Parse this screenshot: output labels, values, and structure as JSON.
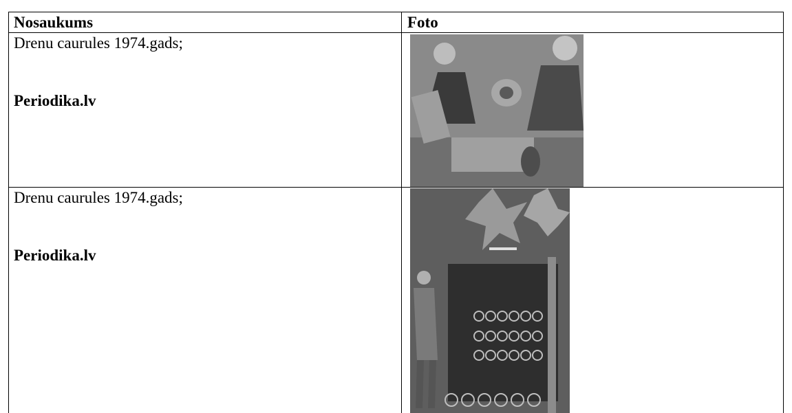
{
  "table": {
    "header": [
      "Nosaukums",
      "Foto"
    ],
    "rows": [
      {
        "text": "Drenu caurules 1974.gads;",
        "source": "Periodika.lv"
      },
      {
        "text": "Drenu caurules 1974.gads;",
        "source": "Periodika.lv"
      }
    ]
  }
}
